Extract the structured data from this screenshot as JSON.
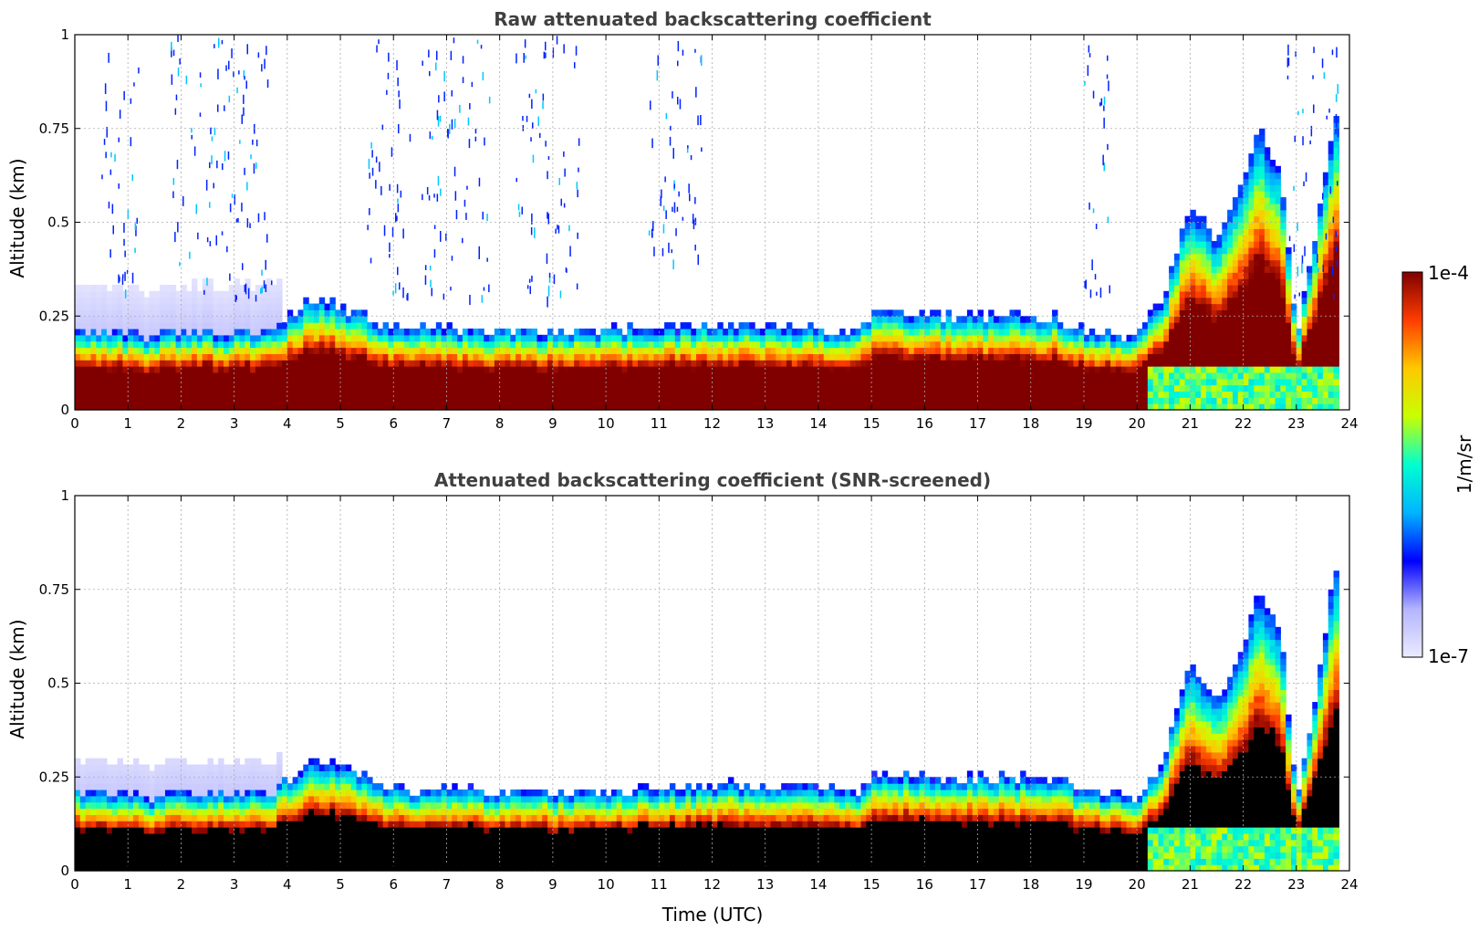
{
  "chart_data": [
    {
      "type": "heatmap",
      "title": "Raw attenuated backscattering coefficient",
      "xlabel": "",
      "ylabel": "Altitude (km)",
      "xlim": [
        0,
        24
      ],
      "ylim": [
        0,
        1
      ],
      "x_ticks": [
        "0",
        "1",
        "2",
        "3",
        "4",
        "5",
        "6",
        "7",
        "8",
        "9",
        "10",
        "11",
        "12",
        "13",
        "14",
        "15",
        "16",
        "17",
        "18",
        "19",
        "20",
        "21",
        "22",
        "23",
        "24"
      ],
      "y_ticks": [
        "0",
        "0.25",
        "0.5",
        "0.75",
        "1"
      ],
      "grid": true,
      "screened": false,
      "layer_top_km": {
        "x": [
          0,
          1,
          1.3,
          2,
          3,
          3.7,
          4.5,
          5,
          6,
          8,
          10,
          12,
          14,
          14.7,
          15,
          17,
          18.5,
          19,
          20,
          20.5,
          21,
          21.5,
          22,
          22.3,
          22.7,
          23,
          23.3,
          23.7,
          23.8
        ],
        "y": [
          0.21,
          0.21,
          0.19,
          0.21,
          0.21,
          0.21,
          0.3,
          0.28,
          0.22,
          0.21,
          0.21,
          0.23,
          0.22,
          0.21,
          0.26,
          0.25,
          0.25,
          0.21,
          0.2,
          0.3,
          0.55,
          0.45,
          0.6,
          0.75,
          0.65,
          0.2,
          0.4,
          0.78,
          0.82
        ]
      },
      "noise_columns_utc": [
        [
          0.5,
          1.2
        ],
        [
          1.8,
          3.7
        ],
        [
          5.5,
          6.3
        ],
        [
          6.5,
          7.8
        ],
        [
          8.3,
          9.5
        ],
        [
          10.8,
          11.8
        ],
        [
          19,
          19.5
        ],
        [
          22.8,
          23.8
        ]
      ]
    },
    {
      "type": "heatmap",
      "title": "Attenuated backscattering coefficient (SNR-screened)",
      "xlabel": "Time (UTC)",
      "ylabel": "Altitude (km)",
      "xlim": [
        0,
        24
      ],
      "ylim": [
        0,
        1
      ],
      "x_ticks": [
        "0",
        "1",
        "2",
        "3",
        "4",
        "5",
        "6",
        "7",
        "8",
        "9",
        "10",
        "11",
        "12",
        "13",
        "14",
        "15",
        "16",
        "17",
        "18",
        "19",
        "20",
        "21",
        "22",
        "23",
        "24"
      ],
      "y_ticks": [
        "0",
        "0.25",
        "0.5",
        "0.75",
        "1"
      ],
      "grid": true,
      "screened": true,
      "layer_top_km": {
        "x": [
          0,
          1,
          1.3,
          2,
          3,
          3.7,
          4.5,
          5,
          6,
          8,
          10,
          12,
          14,
          14.7,
          15,
          17,
          18.5,
          19,
          20,
          20.5,
          21,
          21.5,
          22,
          22.3,
          22.7,
          23,
          23.3,
          23.7,
          23.8
        ],
        "y": [
          0.21,
          0.21,
          0.19,
          0.21,
          0.21,
          0.21,
          0.3,
          0.28,
          0.22,
          0.21,
          0.21,
          0.23,
          0.22,
          0.21,
          0.26,
          0.25,
          0.25,
          0.21,
          0.2,
          0.3,
          0.55,
          0.45,
          0.6,
          0.75,
          0.65,
          0.2,
          0.4,
          0.78,
          0.82
        ]
      }
    }
  ],
  "colorbar": {
    "label": "1/m/sr",
    "max_label": "1e-4",
    "min_label": "1e-7",
    "scale": "log",
    "colormap": [
      "#ebebff",
      "#b4b4ff",
      "#0000ff",
      "#00b4ff",
      "#00ffd0",
      "#c8ff00",
      "#ffc800",
      "#ff3c00",
      "#800000"
    ]
  }
}
